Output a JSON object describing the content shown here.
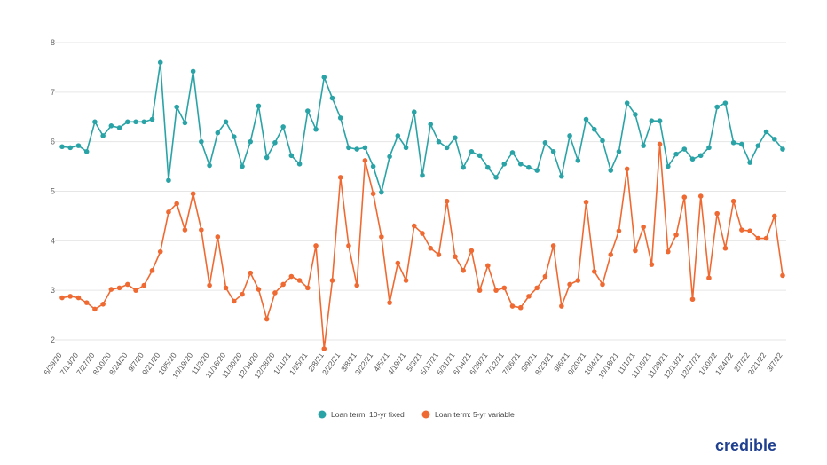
{
  "chart_data": {
    "type": "line",
    "title": "",
    "xlabel": "",
    "ylabel": "",
    "ylim": [
      2,
      8
    ],
    "yticks": [
      2,
      3,
      4,
      5,
      6,
      7,
      8
    ],
    "grid": true,
    "legend_position": "bottom-center",
    "x_labels": [
      "6/29/20",
      "7/13/20",
      "7/27/20",
      "8/10/20",
      "8/24/20",
      "9/7/20",
      "9/21/20",
      "10/5/20",
      "10/19/20",
      "11/2/20",
      "11/16/20",
      "11/30/20",
      "12/14/20",
      "12/28/20",
      "1/11/21",
      "1/25/21",
      "2/8/21",
      "2/22/21",
      "3/8/21",
      "3/22/21",
      "4/5/21",
      "4/19/21",
      "5/3/21",
      "5/17/21",
      "5/31/21",
      "6/14/21",
      "6/28/21",
      "7/12/21",
      "7/26/21",
      "8/9/21",
      "8/23/21",
      "9/6/21",
      "9/20/21",
      "10/4/21",
      "10/18/21",
      "11/1/21",
      "11/15/21",
      "11/29/21",
      "12/13/21",
      "12/27/21",
      "1/10/22",
      "1/24/22",
      "2/7/22",
      "2/21/22",
      "3/7/22"
    ],
    "series": [
      {
        "name": "Loan term: 10-yr fixed",
        "color": "#2aa3a7",
        "values": [
          5.9,
          5.88,
          5.92,
          5.8,
          6.4,
          6.12,
          6.32,
          6.28,
          6.4,
          6.4,
          6.4,
          6.45,
          7.6,
          5.22,
          6.7,
          6.38,
          7.42,
          6.0,
          5.52,
          6.18,
          6.4,
          6.1,
          5.5,
          6.0,
          6.72,
          5.68,
          5.98,
          6.3,
          5.72,
          5.55,
          6.62,
          6.25,
          7.3,
          6.88,
          6.48,
          5.88,
          5.85,
          5.88,
          5.5,
          4.98,
          5.7,
          6.12,
          5.88,
          6.6,
          5.32,
          6.35,
          6.0,
          5.88,
          6.08,
          5.48,
          5.8,
          5.72,
          5.48,
          5.28,
          5.55,
          5.78,
          5.55,
          5.48,
          5.42,
          5.98,
          5.8,
          5.3,
          6.12,
          5.62,
          6.45,
          6.25,
          6.02,
          5.42,
          5.8,
          6.78,
          6.55,
          5.92,
          6.42,
          6.42,
          5.5,
          5.75,
          5.85,
          5.65,
          5.72,
          5.88,
          6.7,
          6.78,
          5.98,
          5.95,
          5.58,
          5.92,
          6.2,
          6.05,
          5.85
        ]
      },
      {
        "name": "Loan term: 5-yr variable",
        "color": "#ef6a32",
        "values": [
          2.85,
          2.88,
          2.85,
          2.75,
          2.62,
          2.72,
          3.02,
          3.05,
          3.12,
          3.0,
          3.1,
          3.4,
          3.78,
          4.58,
          4.75,
          4.22,
          4.95,
          4.22,
          3.1,
          4.08,
          3.05,
          2.78,
          2.92,
          3.35,
          3.02,
          2.42,
          2.95,
          3.12,
          3.28,
          3.2,
          3.05,
          3.9,
          1.82,
          3.2,
          5.28,
          3.9,
          3.1,
          5.62,
          4.95,
          4.08,
          2.75,
          3.55,
          3.2,
          4.3,
          4.15,
          3.85,
          3.72,
          4.8,
          3.68,
          3.4,
          3.8,
          3.0,
          3.5,
          3.0,
          3.05,
          2.68,
          2.65,
          2.88,
          3.05,
          3.28,
          3.9,
          2.68,
          3.12,
          3.2,
          4.78,
          3.38,
          3.12,
          3.72,
          4.2,
          5.45,
          3.8,
          4.28,
          3.52,
          5.95,
          3.78,
          4.12,
          4.88,
          2.82,
          4.9,
          3.25,
          4.55,
          3.85,
          4.8,
          4.22,
          4.2,
          4.05,
          4.05,
          4.5,
          3.3
        ]
      }
    ]
  },
  "branding": {
    "logo_text": "credible"
  }
}
